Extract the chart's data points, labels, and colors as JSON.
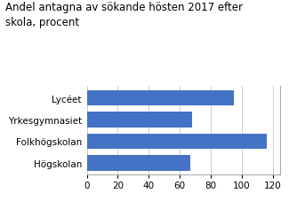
{
  "title_line1": "Andel antagna av sökande hösten 2017 efter",
  "title_line2": "skola, procent",
  "categories": [
    "Lycéet",
    "Yrkesgymnasiet",
    "Folkhögskolan",
    "Högskolan"
  ],
  "values": [
    95,
    68,
    116,
    67
  ],
  "bar_color": "#4472C4",
  "xlim": [
    0,
    125
  ],
  "xticks": [
    0,
    20,
    40,
    60,
    80,
    100,
    120
  ],
  "background_color": "#ffffff",
  "title_fontsize": 8.5,
  "tick_fontsize": 7.5,
  "label_fontsize": 7.5
}
